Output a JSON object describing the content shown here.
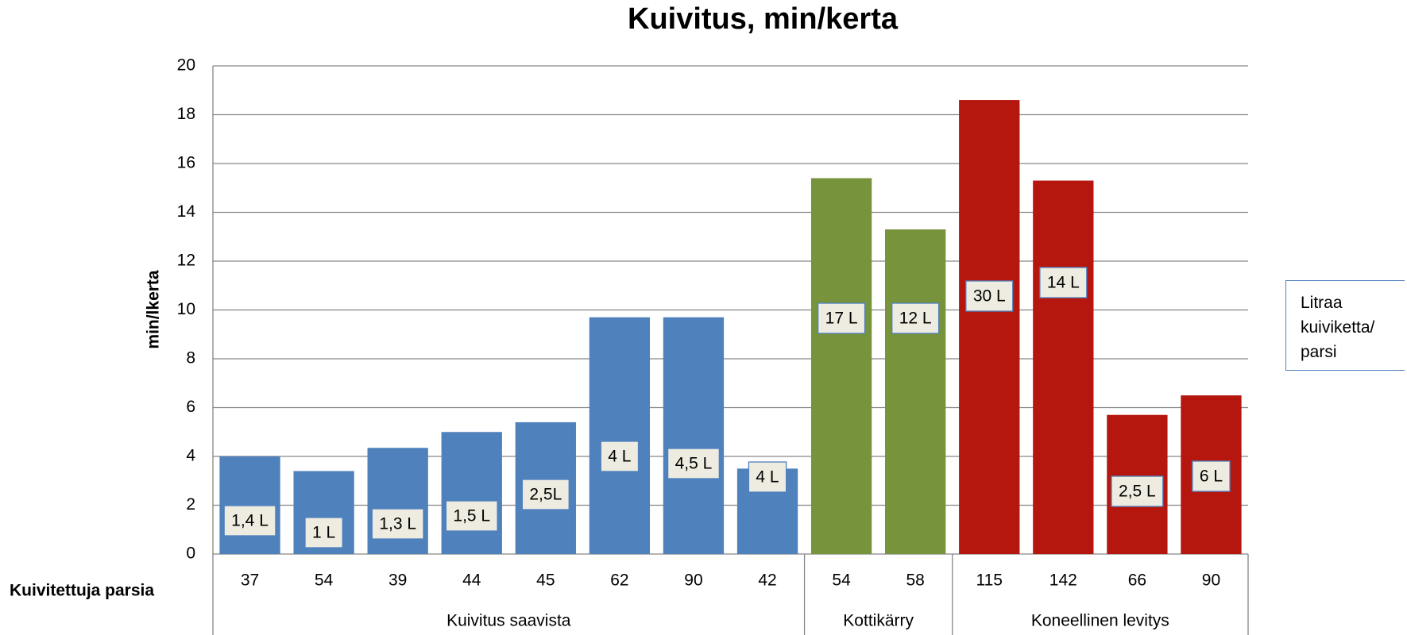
{
  "chart_data": {
    "type": "bar",
    "title": "Kuivitus, min/kerta",
    "y_label": "min/lkerta",
    "row_label": "Kuivitettuja parsia",
    "legend_title": "Litraa kuiviketta/ parsi",
    "ylim": [
      0,
      20
    ],
    "yticks": [
      0,
      2,
      4,
      6,
      8,
      10,
      12,
      14,
      16,
      18,
      20
    ],
    "grid": true,
    "series": [
      {
        "name": "Kuivitus saavista",
        "color": "#4f81bd",
        "categories": [
          "37",
          "54",
          "39",
          "44",
          "45",
          "62",
          "90",
          "42"
        ],
        "values": [
          4.0,
          3.4,
          4.35,
          5.0,
          5.4,
          9.7,
          9.7,
          3.5
        ],
        "labels": [
          "1,4 L",
          "1 L",
          "1,3 L",
          "1,5 L",
          "2,5L",
          "4 L",
          "4,5 L",
          "4 L"
        ]
      },
      {
        "name": "Kottikärry",
        "color": "#77933c",
        "categories": [
          "54",
          "58"
        ],
        "values": [
          15.4,
          13.3
        ],
        "labels": [
          "17 L",
          "12 L"
        ]
      },
      {
        "name": "Koneellinen levitys",
        "color": "#b5170f",
        "categories": [
          "115",
          "142",
          "66",
          "90"
        ],
        "values": [
          18.6,
          15.3,
          5.7,
          6.5
        ],
        "labels": [
          "30 L",
          "14 L",
          "2,5 L",
          "6 L"
        ]
      }
    ]
  }
}
